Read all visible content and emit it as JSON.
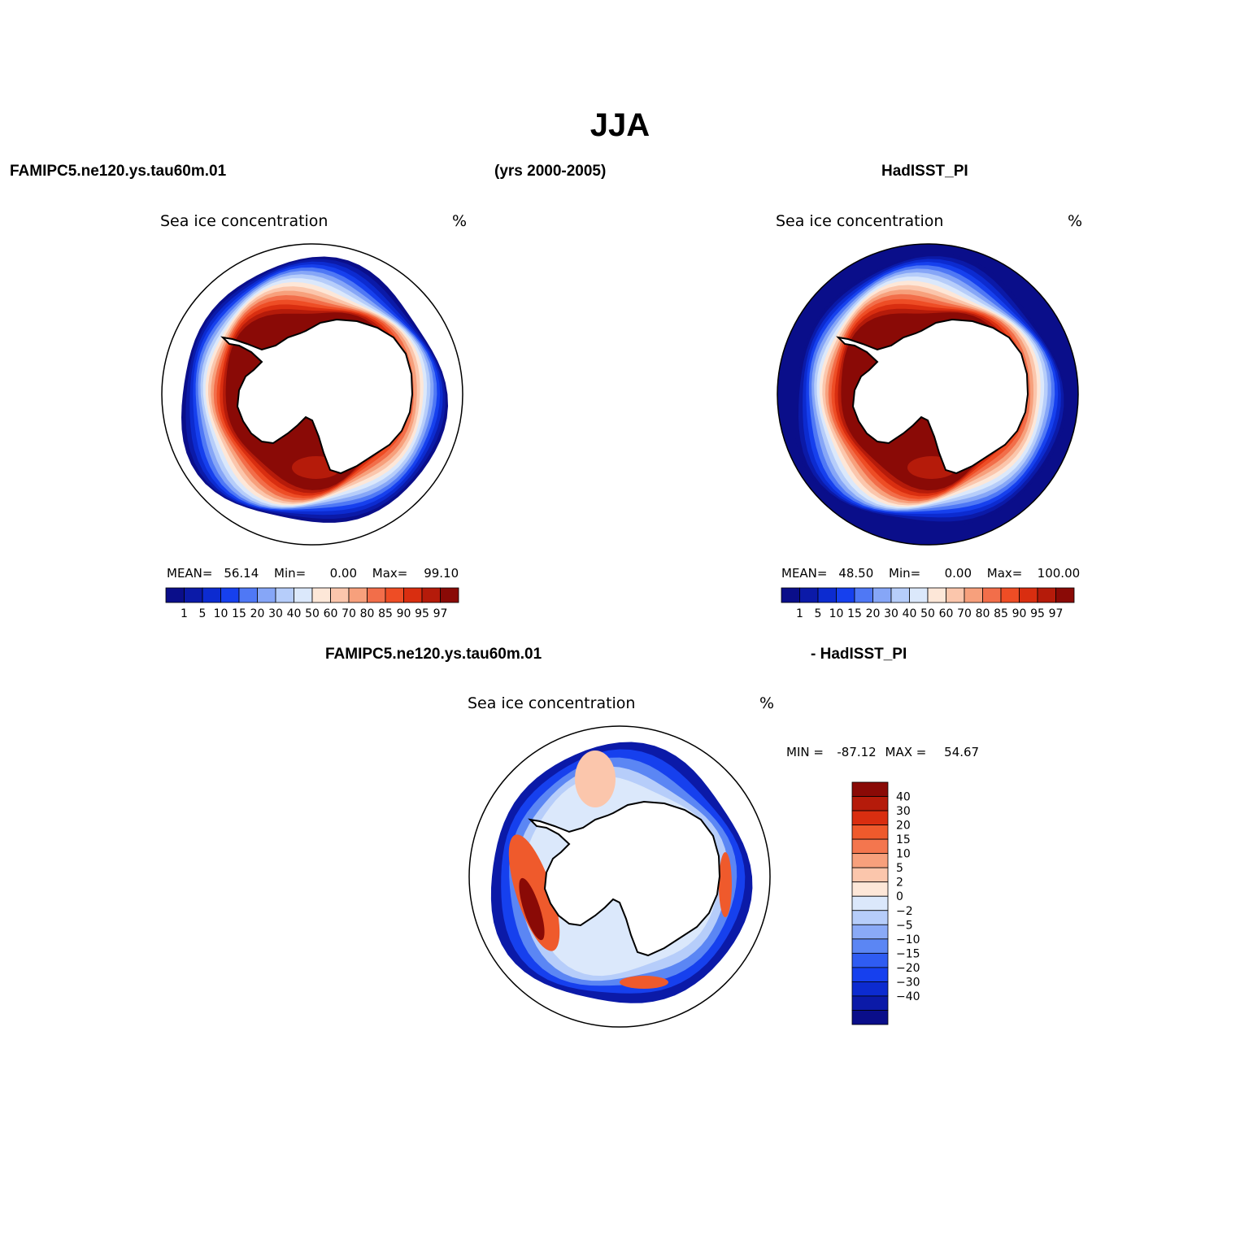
{
  "figure": {
    "title": "JJA",
    "header_left": "FAMIPC5.ne120.ys.tau60m.01",
    "header_center": "(yrs 2000-2005)",
    "header_right": "HadISST_PI",
    "diff_header_left": "FAMIPC5.ne120.ys.tau60m.01",
    "diff_header_right": "- HadISST_PI"
  },
  "colors": {
    "land": "#ffffff",
    "coast": "#000000",
    "abs_scale": [
      "#0a0e8a",
      "#0b1aa8",
      "#0c2bd0",
      "#1640ee",
      "#4f78f5",
      "#86a6f7",
      "#b6cdfa",
      "#dbe8fb",
      "#fde7d8",
      "#fbc6ac",
      "#f7a07c",
      "#f26e4a",
      "#ee4d25",
      "#d92e10",
      "#b51b0a",
      "#8a0a06"
    ],
    "diff_scale": [
      "#0a0e8a",
      "#0b1aa8",
      "#0c2bd0",
      "#1640ee",
      "#2f5cf2",
      "#5b86f4",
      "#8aaaf7",
      "#b6cdfa",
      "#dbe8fb",
      "#fde7d8",
      "#fbc6ac",
      "#f7a07c",
      "#f4764e",
      "#ef5a2c",
      "#d92e10",
      "#b51b0a",
      "#8a0a06"
    ]
  },
  "panels": [
    {
      "name": "model",
      "title": "Sea ice concentration",
      "units": "%",
      "mean_label": "MEAN=",
      "mean": "56.14",
      "min_label": "Min=",
      "min": "0.00",
      "max_label": "Max=",
      "max": "99.10",
      "ice_edge_fraction": 0.88,
      "open_ocean_fill": false,
      "colorbar_ticks": [
        "1",
        "5",
        "10",
        "15",
        "20",
        "30",
        "40",
        "50",
        "60",
        "70",
        "80",
        "85",
        "90",
        "95",
        "97"
      ]
    },
    {
      "name": "observation",
      "title": "Sea ice concentration",
      "units": "%",
      "mean_label": "MEAN=",
      "mean": "48.50",
      "min_label": "Min=",
      "min": "0.00",
      "max_label": "Max=",
      "max": "100.00",
      "ice_edge_fraction": 0.9,
      "open_ocean_fill": true,
      "colorbar_ticks": [
        "1",
        "5",
        "10",
        "15",
        "20",
        "30",
        "40",
        "50",
        "60",
        "70",
        "80",
        "85",
        "90",
        "95",
        "97"
      ]
    },
    {
      "name": "difference",
      "title": "Sea ice concentration",
      "units": "%",
      "min_label": "MIN =",
      "min": "-87.12",
      "max_label": "MAX =",
      "max": "54.67",
      "colorbar_ticks": [
        "40",
        "30",
        "20",
        "15",
        "10",
        "5",
        "2",
        "0",
        "−2",
        "−5",
        "−10",
        "−15",
        "−20",
        "−30",
        "−40"
      ]
    }
  ]
}
